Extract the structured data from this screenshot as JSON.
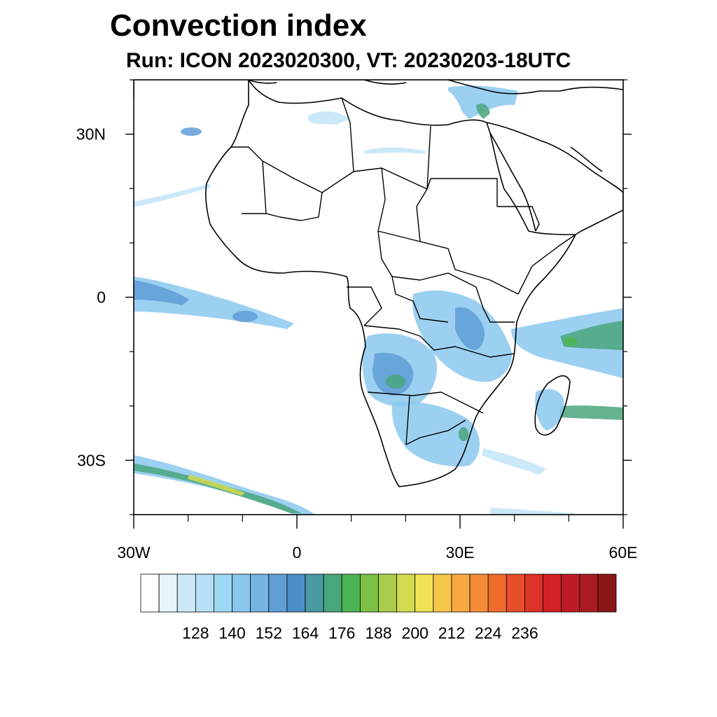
{
  "title": "Convection index",
  "subtitle": "Run: ICON 2023020300,  VT: 20230203-18UTC",
  "map": {
    "projection": "cylindrical-equidistant",
    "lon_range": [
      -30,
      60
    ],
    "lat_range": [
      -40,
      40
    ],
    "lat_labels": [
      {
        "lat": 30,
        "text": "30N"
      },
      {
        "lat": 0,
        "text": "0"
      },
      {
        "lat": -30,
        "text": "30S"
      }
    ],
    "lon_labels": [
      {
        "lon": -30,
        "text": "30W"
      },
      {
        "lon": 0,
        "text": "0"
      },
      {
        "lon": 30,
        "text": "30E"
      },
      {
        "lon": 60,
        "text": "60E"
      }
    ],
    "minor_lat_ticks": [
      40,
      20,
      10,
      -10,
      -20,
      -40
    ],
    "minor_lon_ticks": [
      -20,
      -10,
      10,
      20,
      40,
      50
    ]
  },
  "colorbar": {
    "colors": [
      "#ffffff",
      "#e6f4fb",
      "#cde9f7",
      "#b6e0f6",
      "#9ed7f4",
      "#8ac8ee",
      "#76b4e3",
      "#5f9ed6",
      "#4a8fc8",
      "#4a9aa2",
      "#4aa67c",
      "#4cb454",
      "#7cc048",
      "#a9cd4a",
      "#d3dc50",
      "#f0e254",
      "#f6c64a",
      "#f7a841",
      "#f58c38",
      "#ef6b2c",
      "#e64d29",
      "#dc3227",
      "#cf2226",
      "#be1c25",
      "#a91a22",
      "#8a1618"
    ],
    "labels": [
      "128",
      "140",
      "152",
      "164",
      "176",
      "188",
      "200",
      "212",
      "224",
      "236"
    ]
  },
  "field_colors": {
    "weak": "#b6e0f6",
    "light": "#8ac8ee",
    "moderate": "#5f9ed6",
    "strong": "#4aa67c",
    "very_strong": "#4cb454",
    "extreme": "#d3dc50"
  }
}
